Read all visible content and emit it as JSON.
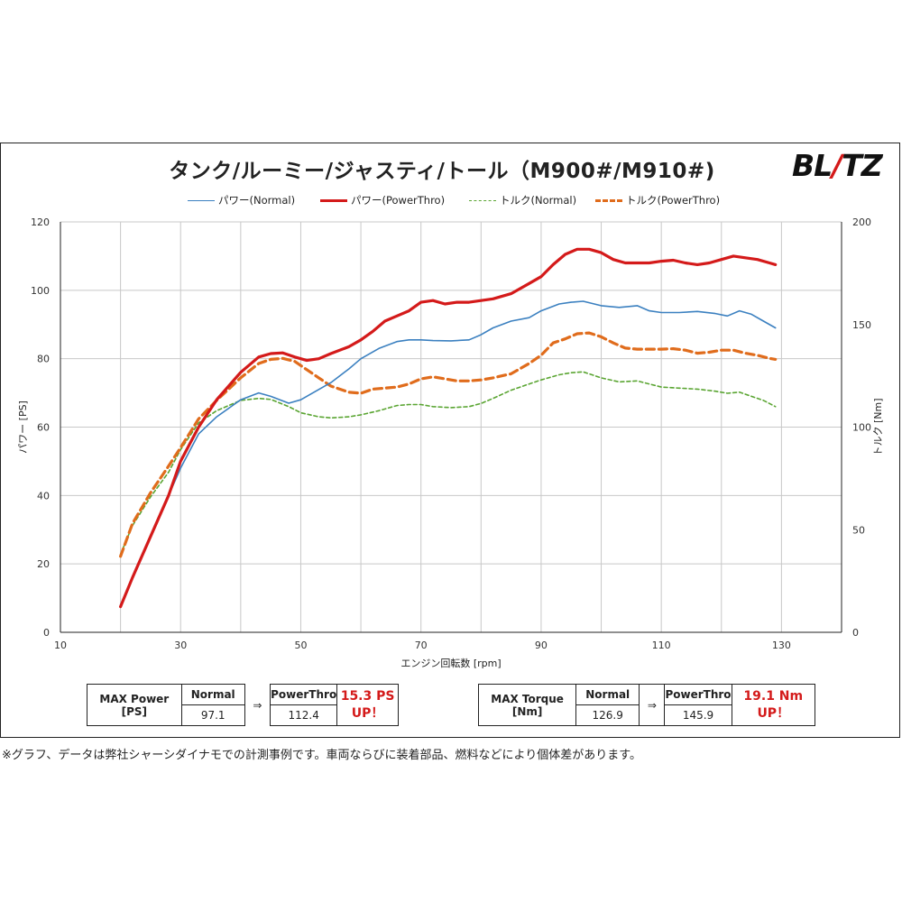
{
  "title": "タンク/ルーミー/ジャスティ/トール（M900#/M910#)",
  "logo": {
    "text_left": "BL",
    "text_slash": "/",
    "text_right": "TZ"
  },
  "legend": {
    "power_normal": "パワー(Normal)",
    "power_powerthro": "パワー(PowerThro)",
    "torque_normal": "トルク(Normal)",
    "torque_powerthro": "トルク(PowerThro)"
  },
  "colors": {
    "power_normal": "#3b80c0",
    "power_powerthro": "#d41a1a",
    "torque_normal": "#5aa532",
    "torque_powerthro": "#e06c1c",
    "grid": "#c8c8c8",
    "axis": "#222222"
  },
  "chart_data": {
    "type": "line",
    "xlabel": "エンジン回転数 [rpm]",
    "ylabel_left": "パワー [PS]",
    "ylabel_right": "トルク [Nm]",
    "xlim": [
      10,
      140
    ],
    "xticks": [
      10,
      30,
      50,
      70,
      90,
      110,
      130
    ],
    "ylim_left": [
      0,
      120
    ],
    "yticks_left": [
      0,
      20,
      40,
      60,
      80,
      100,
      120
    ],
    "ylim_right": [
      0,
      200
    ],
    "yticks_right": [
      0,
      50,
      100,
      150,
      200
    ],
    "grid": true,
    "legend_position": "top",
    "series": [
      {
        "name": "パワー(Normal)",
        "axis": "left",
        "style": "solid-thin",
        "color": "#3b80c0",
        "x": [
          20,
          22,
          25,
          28,
          30,
          33,
          36,
          40,
          43,
          45,
          48,
          50,
          53,
          55,
          58,
          60,
          63,
          66,
          68,
          70,
          72,
          75,
          78,
          80,
          82,
          85,
          88,
          90,
          93,
          95,
          97,
          100,
          103,
          106,
          108,
          110,
          113,
          116,
          119,
          121,
          123,
          125,
          127,
          129
        ],
        "y": [
          8,
          16,
          28,
          40,
          48,
          58,
          63,
          68,
          70,
          69,
          67,
          68,
          71,
          73,
          77,
          80,
          83,
          85,
          85.5,
          85.5,
          85.3,
          85.2,
          85.5,
          87,
          89,
          91,
          92,
          94,
          96,
          96.5,
          96.8,
          95.5,
          95,
          95.5,
          94,
          93.5,
          93.5,
          93.8,
          93.2,
          92.5,
          94,
          93,
          91,
          89
        ]
      },
      {
        "name": "パワー(PowerThro)",
        "axis": "left",
        "style": "solid-thick",
        "color": "#d41a1a",
        "x": [
          20,
          22,
          25,
          28,
          30,
          33,
          36,
          40,
          43,
          45,
          47,
          49,
          51,
          53,
          55,
          58,
          60,
          62,
          64,
          66,
          68,
          70,
          72,
          74,
          76,
          78,
          80,
          82,
          85,
          88,
          90,
          92,
          94,
          96,
          98,
          100,
          102,
          104,
          106,
          108,
          110,
          112,
          114,
          116,
          118,
          120,
          122,
          124,
          126,
          128,
          129
        ],
        "y": [
          7.5,
          16,
          28,
          40,
          50,
          60,
          68,
          76,
          80.5,
          81.5,
          81.7,
          80.5,
          79.5,
          80,
          81.5,
          83.5,
          85.5,
          88,
          91,
          92.5,
          94,
          96.5,
          97,
          96,
          96.5,
          96.5,
          97,
          97.5,
          99,
          102,
          104,
          107.5,
          110.5,
          112,
          112,
          111,
          109,
          108,
          108,
          108,
          108.5,
          108.8,
          108,
          107.5,
          108,
          109,
          110,
          109.5,
          109,
          108,
          107.5
        ]
      },
      {
        "name": "トルク(Normal)",
        "axis": "right",
        "style": "dashed-thin",
        "color": "#5aa532",
        "x": [
          20,
          22,
          25,
          28,
          30,
          33,
          36,
          40,
          43,
          45,
          48,
          50,
          53,
          55,
          58,
          60,
          63,
          66,
          68,
          70,
          72,
          75,
          78,
          80,
          82,
          85,
          88,
          90,
          93,
          95,
          97,
          100,
          103,
          106,
          108,
          110,
          113,
          116,
          119,
          121,
          123,
          125,
          127,
          129
        ],
        "y": [
          38,
          52,
          66,
          78,
          89,
          102,
          108,
          113,
          114,
          113.5,
          110,
          107,
          105,
          104.5,
          105,
          106,
          108,
          110.5,
          111,
          111,
          110,
          109.5,
          110,
          111.5,
          114,
          118,
          121,
          123,
          125.5,
          126.5,
          126.9,
          124,
          122,
          122.5,
          121,
          119.5,
          119,
          118.5,
          117.5,
          116.5,
          117,
          115,
          113,
          110
        ]
      },
      {
        "name": "トルク(PowerThro)",
        "axis": "right",
        "style": "dashed-thick",
        "color": "#e06c1c",
        "x": [
          20,
          22,
          25,
          28,
          30,
          33,
          36,
          40,
          43,
          45,
          47,
          49,
          51,
          53,
          55,
          58,
          60,
          62,
          64,
          66,
          68,
          70,
          72,
          74,
          76,
          78,
          80,
          82,
          85,
          88,
          90,
          92,
          94,
          96,
          98,
          100,
          102,
          104,
          106,
          108,
          110,
          112,
          114,
          116,
          118,
          120,
          122,
          124,
          126,
          128,
          129
        ],
        "y": [
          37,
          53,
          68,
          81,
          90,
          104,
          113,
          124,
          131,
          133,
          133.5,
          132,
          128,
          124,
          120,
          117,
          116.5,
          118.5,
          119,
          119.5,
          121,
          123.5,
          124.5,
          123.5,
          122.5,
          122.5,
          123,
          124,
          126,
          131,
          135,
          141,
          143,
          145.5,
          145.9,
          144,
          141,
          138.5,
          138,
          138,
          138,
          138.2,
          137.5,
          136,
          136.5,
          137.5,
          137.5,
          136,
          135,
          133.5,
          133
        ]
      }
    ]
  },
  "power_table": {
    "label_line1": "MAX Power",
    "label_line2": "[PS]",
    "normal_header": "Normal",
    "normal_value": "97.1",
    "arrow": "⇒",
    "powerthro_header": "PowerThro",
    "powerthro_value": "112.4",
    "gain_line1": "15.3 PS",
    "gain_line2": "UP！"
  },
  "torque_table": {
    "label_line1": "MAX Torque",
    "label_line2": "[Nm]",
    "normal_header": "Normal",
    "normal_value": "126.9",
    "arrow": "⇒",
    "powerthro_header": "PowerThro",
    "powerthro_value": "145.9",
    "gain_line1": "19.1 Nm",
    "gain_line2": "UP！"
  },
  "footnote": "※グラフ、データは弊社シャーシダイナモでの計測事例です。車両ならびに装着部品、燃料などにより個体差があります。"
}
